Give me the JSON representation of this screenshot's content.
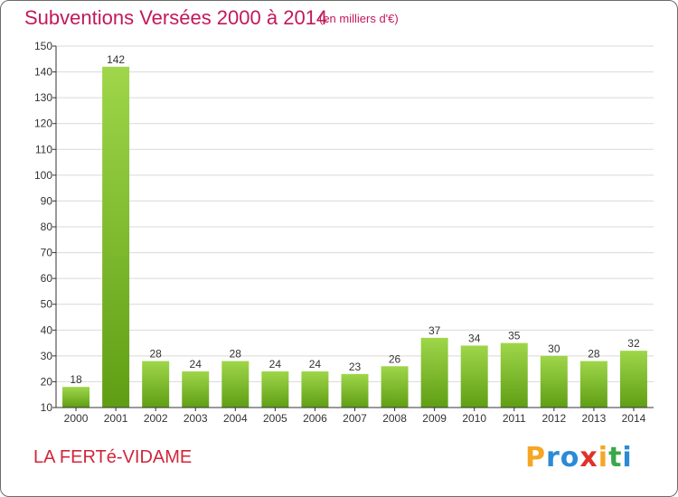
{
  "title": "Subventions Versées 2000 à 2014",
  "unit": "(en milliers d'€)",
  "commune": "LA FERTé-VIDAME",
  "logo": {
    "letters": [
      "P",
      "r",
      "o",
      "x",
      "i",
      "t",
      "i"
    ],
    "colors": [
      "#f5a623",
      "#2a8bd6",
      "#2a8bd6",
      "#e0312b",
      "#f5a623",
      "#3aa84a",
      "#2a8bd6"
    ]
  },
  "colors": {
    "title": "#c2185b",
    "bar_top": "#9fd64a",
    "bar_bottom": "#5f9e14",
    "grid": "#d9d9d9",
    "axis": "#333333",
    "commune": "#d0273a"
  },
  "chart_data": {
    "type": "bar",
    "title": "Subventions Versées 2000 à 2014",
    "subtitle": "(en milliers d'€)",
    "categories": [
      "2000",
      "2001",
      "2002",
      "2003",
      "2004",
      "2005",
      "2006",
      "2007",
      "2008",
      "2009",
      "2010",
      "2011",
      "2012",
      "2013",
      "2014"
    ],
    "values": [
      18,
      142,
      28,
      24,
      28,
      24,
      24,
      23,
      26,
      37,
      34,
      35,
      30,
      28,
      32
    ],
    "xlabel": "",
    "ylabel": "",
    "ylim": [
      10,
      150
    ],
    "yticks": [
      10,
      20,
      30,
      40,
      50,
      60,
      70,
      80,
      90,
      100,
      110,
      120,
      130,
      140,
      150
    ],
    "grid": true,
    "data_labels": true
  }
}
